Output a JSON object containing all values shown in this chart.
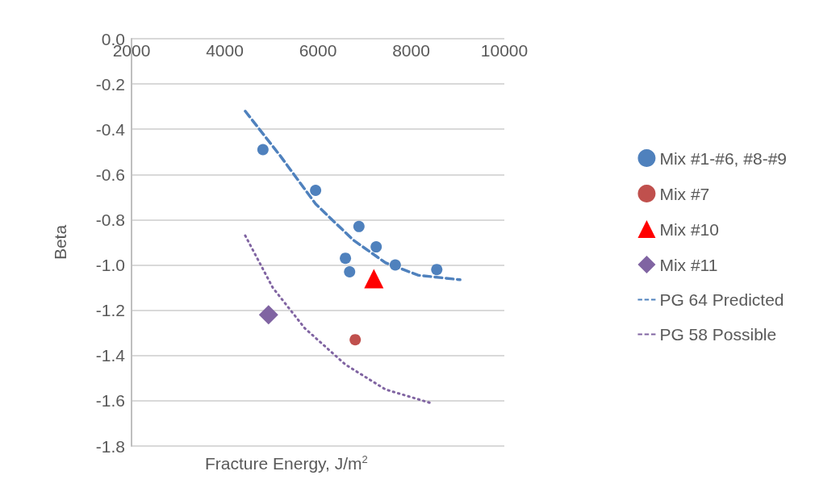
{
  "chart_data": {
    "type": "scatter",
    "xlabel": "Fracture Energy, J/m$^{2}$",
    "ylabel": "Beta",
    "xlim": [
      2000,
      10000
    ],
    "xticks": [
      2000,
      4000,
      6000,
      8000,
      10000
    ],
    "ylim": [
      -1.8,
      0
    ],
    "yticks": [
      {
        "value": -1.8,
        "label": "-1.8"
      },
      {
        "value": -1.6,
        "label": "-1.6"
      },
      {
        "value": -1.4,
        "label": "-1.4"
      },
      {
        "value": -1.2,
        "label": "-1.2"
      },
      {
        "value": -1,
        "label": "-1.0"
      },
      {
        "value": -0.8,
        "label": "-0.8"
      },
      {
        "value": -0.6,
        "label": "-0.6"
      },
      {
        "value": -0.4,
        "label": "-0.4"
      },
      {
        "value": -0.2,
        "label": "-0.2"
      },
      {
        "value": 0,
        "label": "0.0"
      }
    ],
    "grid": "y",
    "legend": "right",
    "series": [
      {
        "name": "Mix #1-#6, #8-#9",
        "color": "#4f81bd",
        "marker": "circle",
        "x": [
          4820,
          5950,
          6880,
          6590,
          6680,
          7250,
          7660,
          8550
        ],
        "values": [
          -0.49,
          -0.67,
          -0.83,
          -0.97,
          -1.03,
          -0.92,
          -1.0,
          -1.02
        ]
      },
      {
        "name": "Mix #7",
        "color": "#c0504d",
        "marker": "circle",
        "x": [
          6800
        ],
        "values": [
          -1.33
        ]
      },
      {
        "name": "Mix #10",
        "color": "#ff0000",
        "marker": "triangle",
        "x": [
          7200
        ],
        "values": [
          -1.06
        ]
      },
      {
        "name": "Mix #11",
        "color": "#8064a2",
        "marker": "diamond",
        "x": [
          4940
        ],
        "values": [
          -1.22
        ]
      },
      {
        "name": "PG 64 Predicted",
        "type": "line",
        "color": "#4f81bd",
        "line_style": "dashed",
        "marker": "none",
        "x": [
          4440,
          5200,
          5950,
          6760,
          7450,
          8150,
          9050
        ],
        "values": [
          -0.32,
          -0.52,
          -0.73,
          -0.89,
          -0.99,
          -1.045,
          -1.065
        ]
      },
      {
        "name": "PG 58 Possible",
        "type": "line",
        "color": "#8064a2",
        "line_style": "dotted",
        "marker": "none",
        "x": [
          4440,
          5030,
          5720,
          6590,
          7450,
          8420
        ],
        "values": [
          -0.87,
          -1.1,
          -1.28,
          -1.44,
          -1.55,
          -1.61
        ]
      }
    ]
  }
}
